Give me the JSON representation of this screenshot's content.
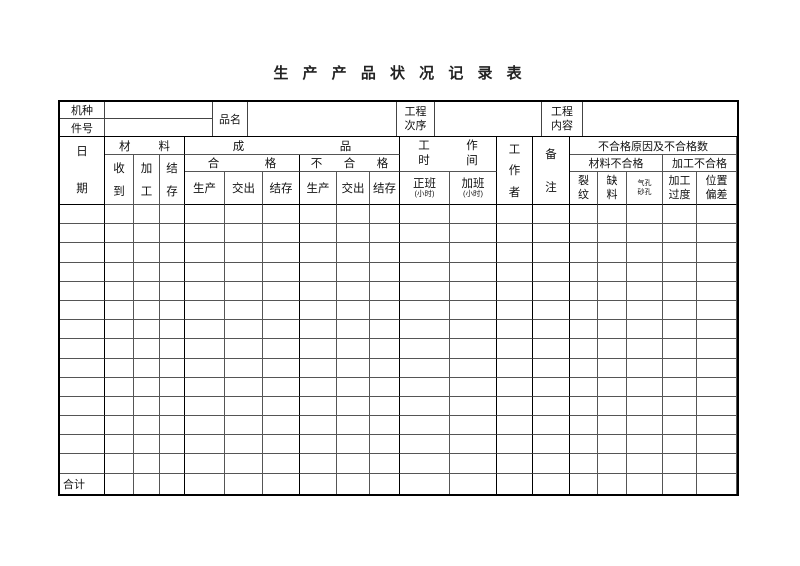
{
  "title": "生 产 产 品 状 况 记 录 表",
  "info": {
    "machine_label": "机种",
    "part_label": "件号",
    "product_label": "品名",
    "process_order": [
      "工程",
      "次序"
    ],
    "process_content": [
      "工程",
      "内容"
    ]
  },
  "header": {
    "date": [
      "日",
      "期"
    ],
    "material": [
      "材",
      "料"
    ],
    "material_sub": [
      [
        "收",
        "到"
      ],
      [
        "加",
        "工"
      ],
      [
        "结",
        "存"
      ]
    ],
    "finished": [
      "成",
      "品"
    ],
    "qualified": [
      "合",
      "格"
    ],
    "unqualified": [
      "不",
      "合",
      "格"
    ],
    "prod_sub": [
      "生产",
      "交出",
      "结存",
      "生产",
      "交出",
      "结存"
    ],
    "worktime": [
      [
        "工",
        "作"
      ],
      [
        "时",
        "间"
      ]
    ],
    "shift_regular": {
      "main": "正班",
      "unit": "(小时)"
    },
    "shift_overtime": {
      "main": "加班",
      "unit": "(小时)"
    },
    "worker": [
      "工",
      "作",
      "者"
    ],
    "remarks": [
      "备",
      "注"
    ],
    "defects_group": "不合格原因及不合格数",
    "defects_material": "材料不合格",
    "defects_process": "加工不合格",
    "defect_crack": [
      "裂",
      "纹"
    ],
    "defect_shortage": [
      "缺",
      "料"
    ],
    "defect_holes": "气孔砂孔",
    "defect_over": [
      "加工",
      "过度"
    ],
    "defect_position": [
      "位置",
      "偏差"
    ]
  },
  "footer": {
    "total_label": "合计"
  },
  "grid": {
    "body_rows": 14,
    "columns": 19
  }
}
